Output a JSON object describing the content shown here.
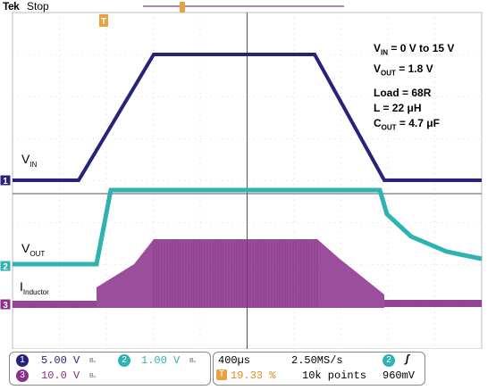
{
  "header": {
    "brand": "Tek",
    "state": "Stop"
  },
  "colors": {
    "ch1": "#27237a",
    "ch2": "#2fb3b0",
    "ch3": "#8a2f8a",
    "grid": "#bdbdbd",
    "trigger": "#e8a040"
  },
  "trace_labels": {
    "vin": {
      "main": "V",
      "sub": "IN"
    },
    "vout": {
      "main": "V",
      "sub": "OUT"
    },
    "inductor": {
      "main": "I",
      "sub": "Inductor"
    }
  },
  "markers": {
    "ch1": "1",
    "ch2": "2",
    "ch3": "3",
    "trigger": "T"
  },
  "annotations": {
    "vin": {
      "pre": "V",
      "sub": "IN",
      "post": " = 0 V to 15 V"
    },
    "vout": {
      "pre": "V",
      "sub": "OUT",
      "post": " = 1.8 V"
    },
    "load": "Load  = 68R",
    "inductance": "L = 22 μH",
    "cout": {
      "pre": "C",
      "sub": "OUT",
      "post": " = 4.7 μF"
    }
  },
  "status": {
    "ch1": {
      "num": "1",
      "scale": "5.00 V",
      "bw": "Bᵥ"
    },
    "ch2": {
      "num": "2",
      "scale": "1.00 V",
      "bw": "Bᵥ"
    },
    "ch3": {
      "num": "3",
      "scale": "10.0 V",
      "bw": "Bᵥ"
    },
    "timebase": "400µs",
    "sample_rate": "2.50MS/s",
    "trigger_pos": "19.33 %",
    "trigger_icon": "T",
    "record_length": "10k points",
    "trigger_source": "2",
    "trigger_slope": "ʃ",
    "trigger_level": "960mV"
  }
}
